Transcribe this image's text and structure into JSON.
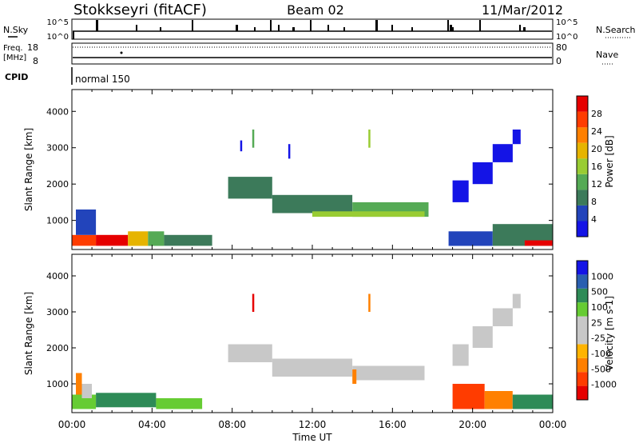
{
  "header": {
    "station": "Stokkseyri (fitACF)",
    "beam": "Beam 02",
    "date": "11/Mar/2012"
  },
  "status_panel": {
    "nsky_label": "N.Sky",
    "nsky_ticks": [
      "10^5",
      "10^0"
    ],
    "nsearch_label": "N.Search",
    "freq_label": "Freq.",
    "freq_unit": "[MHz]",
    "freq_ticks": [
      "18",
      "8"
    ],
    "nave_label": "Nave",
    "nave_ticks": [
      "80",
      "0"
    ],
    "cpid_label": "CPID",
    "cpid_value": "normal 150"
  },
  "colors": {
    "power": [
      "#1414e6",
      "#2244bb",
      "#3c7a5a",
      "#55aa55",
      "#99cc33",
      "#e6b400",
      "#ff8000",
      "#ff3c00",
      "#e60000"
    ],
    "velocity": [
      "#e60000",
      "#ff3c00",
      "#ff8000",
      "#ffb400",
      "#c8c8c8",
      "#c8c8c8",
      "#66cc33",
      "#2e8b57",
      "#2a5fb0",
      "#1414e6"
    ]
  },
  "chart_data": [
    {
      "type": "heatmap",
      "panel": "power",
      "ylabel": "Slant Range [km]",
      "colorbar_label": "Power [dB]",
      "colorbar_ticks": [
        "4",
        "8",
        "12",
        "16",
        "20",
        "24",
        "28"
      ],
      "yticks": [
        "1000",
        "2000",
        "3000",
        "4000"
      ],
      "ylim": [
        200,
        4600
      ],
      "xlim": [
        0,
        24
      ],
      "regions": [
        {
          "x": [
            0.0,
            1.2
          ],
          "y": [
            300,
            600
          ],
          "level": 7
        },
        {
          "x": [
            1.2,
            2.8
          ],
          "y": [
            300,
            600
          ],
          "level": 8
        },
        {
          "x": [
            2.8,
            3.8
          ],
          "y": [
            300,
            700
          ],
          "level": 5
        },
        {
          "x": [
            3.8,
            4.6
          ],
          "y": [
            300,
            700
          ],
          "level": 3
        },
        {
          "x": [
            4.6,
            7.0
          ],
          "y": [
            300,
            600
          ],
          "level": 2
        },
        {
          "x": [
            0.2,
            1.2
          ],
          "y": [
            600,
            1300
          ],
          "level": 1
        },
        {
          "x": [
            7.8,
            10.0
          ],
          "y": [
            1600,
            2200
          ],
          "level": 2
        },
        {
          "x": [
            10.0,
            14.0
          ],
          "y": [
            1200,
            1700
          ],
          "level": 2
        },
        {
          "x": [
            14.0,
            17.8
          ],
          "y": [
            1100,
            1500
          ],
          "level": 3
        },
        {
          "x": [
            12.0,
            17.6
          ],
          "y": [
            1100,
            1250
          ],
          "level": 4
        },
        {
          "x": [
            18.8,
            21.0
          ],
          "y": [
            300,
            700
          ],
          "level": 1
        },
        {
          "x": [
            21.0,
            24.0
          ],
          "y": [
            300,
            900
          ],
          "level": 2
        },
        {
          "x": [
            22.6,
            24.0
          ],
          "y": [
            300,
            450
          ],
          "level": 8
        },
        {
          "x": [
            19.0,
            19.8
          ],
          "y": [
            1500,
            2100
          ],
          "level": 0
        },
        {
          "x": [
            20.0,
            21.0
          ],
          "y": [
            2000,
            2600
          ],
          "level": 0
        },
        {
          "x": [
            21.0,
            22.0
          ],
          "y": [
            2600,
            3100
          ],
          "level": 0
        },
        {
          "x": [
            22.0,
            22.4
          ],
          "y": [
            3100,
            3500
          ],
          "level": 0
        },
        {
          "x": [
            9.0,
            9.1
          ],
          "y": [
            3000,
            3500
          ],
          "level": 3
        },
        {
          "x": [
            14.8,
            14.9
          ],
          "y": [
            3000,
            3500
          ],
          "level": 4
        },
        {
          "x": [
            8.4,
            8.5
          ],
          "y": [
            2900,
            3200
          ],
          "level": 0
        },
        {
          "x": [
            10.8,
            10.9
          ],
          "y": [
            2700,
            3100
          ],
          "level": 0
        }
      ]
    },
    {
      "type": "heatmap",
      "panel": "velocity",
      "xlabel": "Time UT",
      "ylabel": "Slant Range [km]",
      "colorbar_label": "Velocity [m s-1]",
      "colorbar_ticks": [
        "-1000",
        "-500",
        "-100",
        "-25",
        "25",
        "100",
        "500",
        "1000"
      ],
      "xticks": [
        "00:00",
        "04:00",
        "08:00",
        "12:00",
        "16:00",
        "20:00",
        "00:00"
      ],
      "yticks": [
        "1000",
        "2000",
        "3000",
        "4000"
      ],
      "ylim": [
        200,
        4600
      ],
      "xlim": [
        0,
        24
      ],
      "regions": [
        {
          "x": [
            0.0,
            1.2
          ],
          "y": [
            300,
            700
          ],
          "level": 6
        },
        {
          "x": [
            1.2,
            4.2
          ],
          "y": [
            350,
            750
          ],
          "level": 7
        },
        {
          "x": [
            4.2,
            6.5
          ],
          "y": [
            300,
            600
          ],
          "level": 6
        },
        {
          "x": [
            0.2,
            0.5
          ],
          "y": [
            700,
            1300
          ],
          "level": 2
        },
        {
          "x": [
            0.5,
            1.0
          ],
          "y": [
            600,
            1000
          ],
          "level": 4
        },
        {
          "x": [
            7.8,
            10.0
          ],
          "y": [
            1600,
            2100
          ],
          "level": 4
        },
        {
          "x": [
            10.0,
            14.0
          ],
          "y": [
            1200,
            1700
          ],
          "level": 4
        },
        {
          "x": [
            14.0,
            17.6
          ],
          "y": [
            1100,
            1500
          ],
          "level": 4
        },
        {
          "x": [
            19.0,
            19.8
          ],
          "y": [
            1500,
            2100
          ],
          "level": 4
        },
        {
          "x": [
            20.0,
            21.0
          ],
          "y": [
            2000,
            2600
          ],
          "level": 4
        },
        {
          "x": [
            21.0,
            22.0
          ],
          "y": [
            2600,
            3100
          ],
          "level": 4
        },
        {
          "x": [
            22.0,
            22.4
          ],
          "y": [
            3100,
            3500
          ],
          "level": 4
        },
        {
          "x": [
            19.0,
            20.6
          ],
          "y": [
            300,
            1000
          ],
          "level": 1
        },
        {
          "x": [
            20.6,
            22.0
          ],
          "y": [
            300,
            800
          ],
          "level": 2
        },
        {
          "x": [
            22.0,
            24.0
          ],
          "y": [
            300,
            700
          ],
          "level": 7
        },
        {
          "x": [
            9.0,
            9.1
          ],
          "y": [
            3000,
            3500
          ],
          "level": 0
        },
        {
          "x": [
            14.8,
            14.9
          ],
          "y": [
            3000,
            3500
          ],
          "level": 2
        },
        {
          "x": [
            14.0,
            14.2
          ],
          "y": [
            1000,
            1400
          ],
          "level": 2
        }
      ]
    }
  ]
}
